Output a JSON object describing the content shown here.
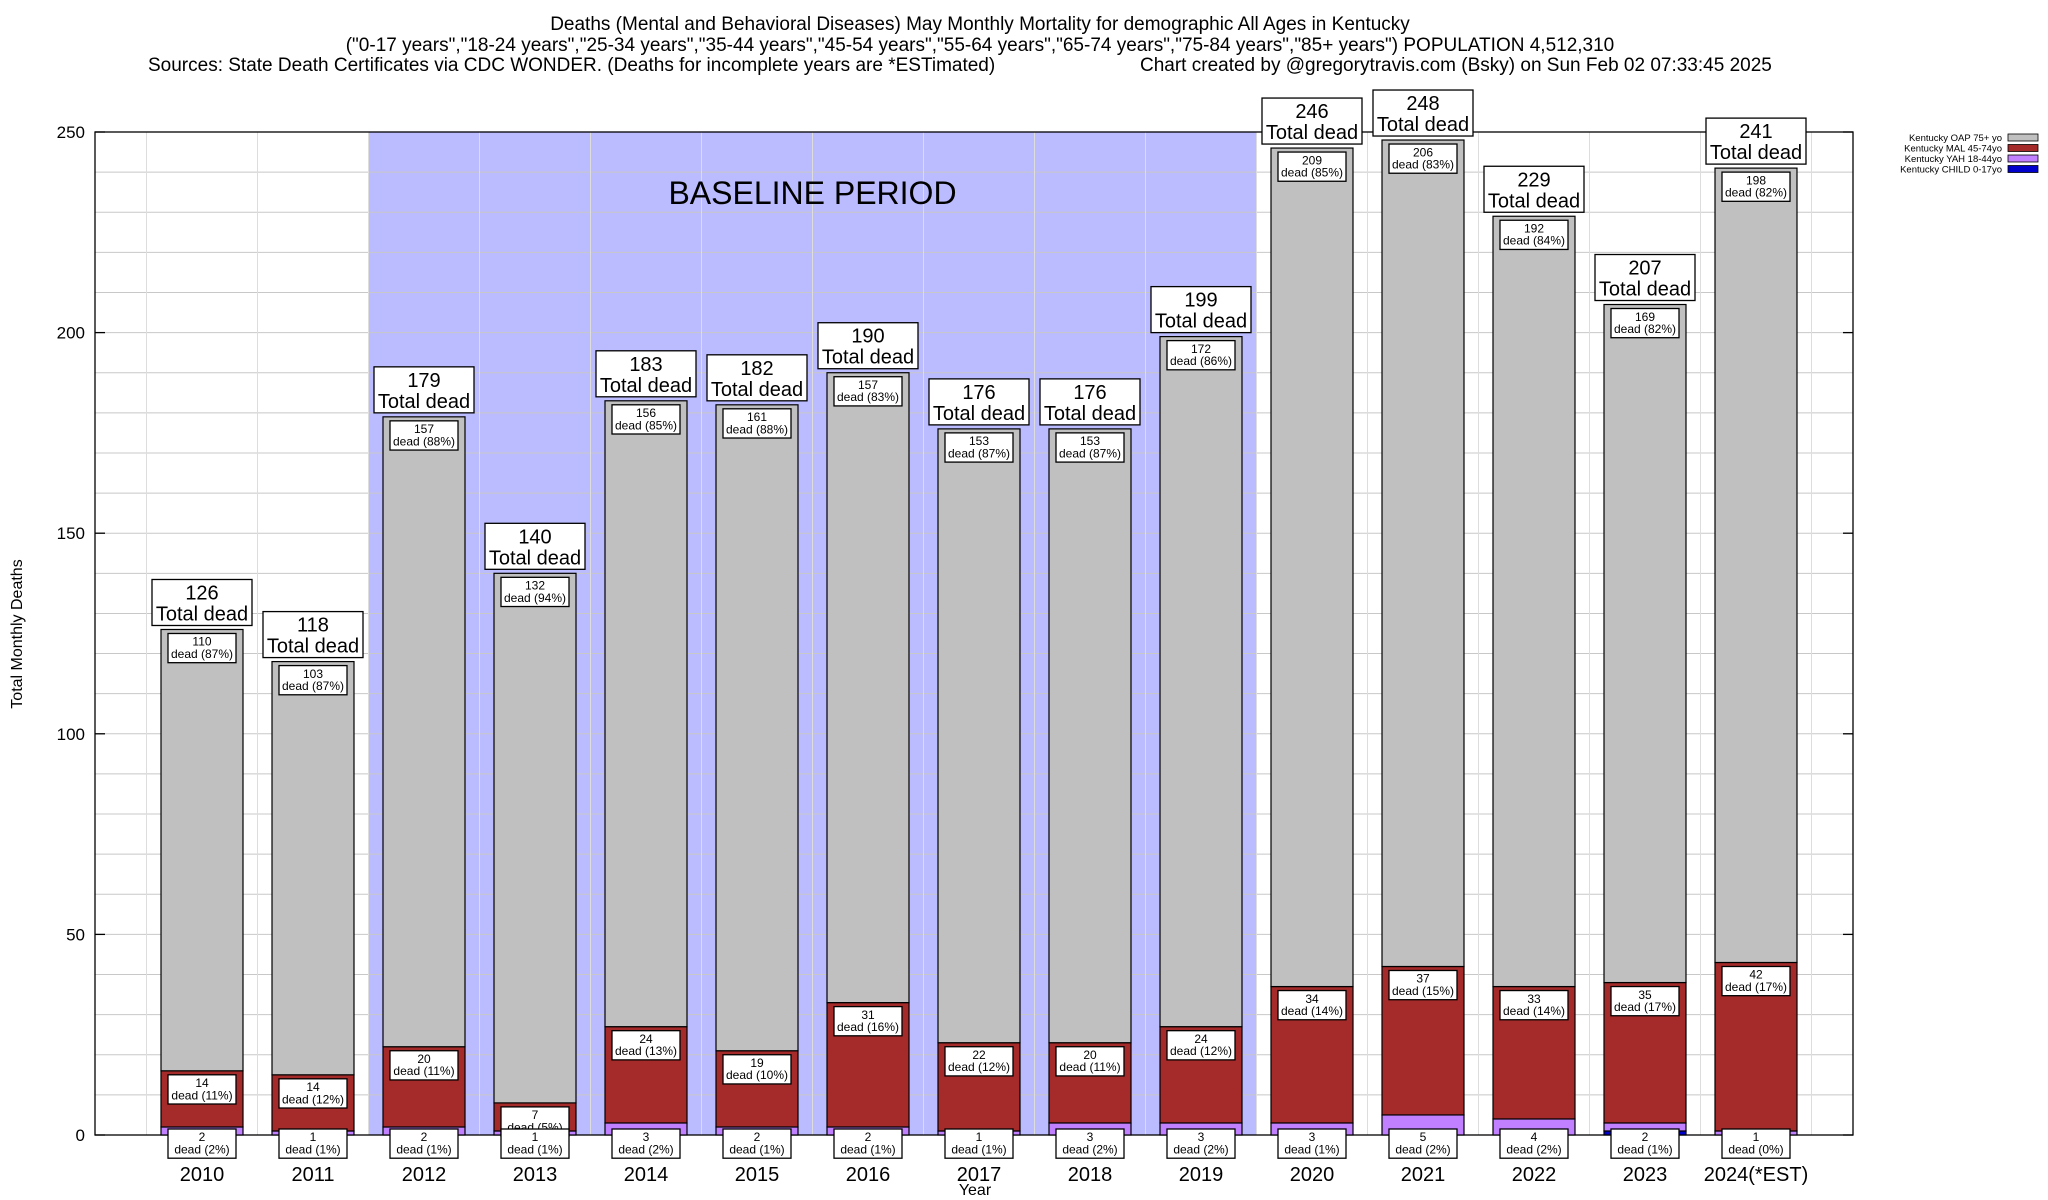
{
  "title": {
    "line1": "Deaths (Mental and Behavioral Diseases) May Monthly Mortality for demographic All Ages in Kentucky",
    "line2": "(\"0-17 years\",\"18-24 years\",\"25-34 years\",\"35-44 years\",\"45-54 years\",\"55-64 years\",\"65-74 years\",\"75-84 years\",\"85+ years\") POPULATION 4,512,310",
    "sources": "Sources: State Death Certificates via CDC WONDER. (Deaths for incomplete years are *ESTimated)",
    "credit": "Chart created by @gregorytravis.com (Bsky) on Sun Feb 02 07:33:45 2025"
  },
  "chart_data": {
    "type": "bar",
    "stacked": true,
    "xlabel": "Year",
    "ylabel": "Total Monthly Deaths",
    "ylim": [
      0,
      250
    ],
    "yticks": [
      0,
      50,
      100,
      150,
      200,
      250
    ],
    "grid": true,
    "legend_position": "top-right",
    "baseline_label": "BASELINE PERIOD",
    "baseline_range": [
      "2012",
      "2019"
    ],
    "categories": [
      "2010",
      "2011",
      "2012",
      "2013",
      "2014",
      "2015",
      "2016",
      "2017",
      "2018",
      "2019",
      "2020",
      "2021",
      "2022",
      "2023",
      "2024(*EST)"
    ],
    "totals": [
      126,
      118,
      179,
      140,
      183,
      182,
      190,
      176,
      176,
      199,
      246,
      248,
      229,
      207,
      241
    ],
    "total_suffix": "Total dead",
    "dead_word": "dead",
    "series": [
      {
        "name": "Kentucky CHILD 0-17yo",
        "color": "#0000cc",
        "values": [
          0,
          0,
          0,
          0,
          0,
          0,
          0,
          0,
          0,
          0,
          0,
          0,
          0,
          1,
          0
        ],
        "pct": [],
        "show_labels": false
      },
      {
        "name": "Kentucky YAH 18-44yo",
        "color": "#c080ff",
        "values": [
          2,
          1,
          2,
          1,
          3,
          2,
          2,
          1,
          3,
          3,
          3,
          5,
          4,
          2,
          1
        ],
        "pct": [
          "2%",
          "1%",
          "1%",
          "1%",
          "2%",
          "1%",
          "1%",
          "1%",
          "2%",
          "2%",
          "1%",
          "2%",
          "2%",
          "1%",
          "0%"
        ],
        "show_labels": true
      },
      {
        "name": "Kentucky MAL 45-74yo",
        "color": "#a52a2a",
        "values": [
          14,
          14,
          20,
          7,
          24,
          19,
          31,
          22,
          20,
          24,
          34,
          37,
          33,
          35,
          42
        ],
        "pct": [
          "11%",
          "12%",
          "11%",
          "5%",
          "13%",
          "10%",
          "16%",
          "12%",
          "11%",
          "12%",
          "14%",
          "15%",
          "14%",
          "17%",
          "17%"
        ],
        "show_labels": true
      },
      {
        "name": "Kentucky OAP 75+ yo",
        "color": "#c0c0c0",
        "values": [
          110,
          103,
          157,
          132,
          156,
          161,
          157,
          153,
          153,
          172,
          209,
          206,
          192,
          169,
          198
        ],
        "pct": [
          "87%",
          "87%",
          "88%",
          "94%",
          "85%",
          "88%",
          "83%",
          "87%",
          "87%",
          "86%",
          "85%",
          "83%",
          "84%",
          "82%",
          "82%"
        ],
        "show_labels": true
      }
    ]
  },
  "colors": {
    "baseline_fill": "#bbbbff",
    "grid": "#c8c8c8"
  }
}
